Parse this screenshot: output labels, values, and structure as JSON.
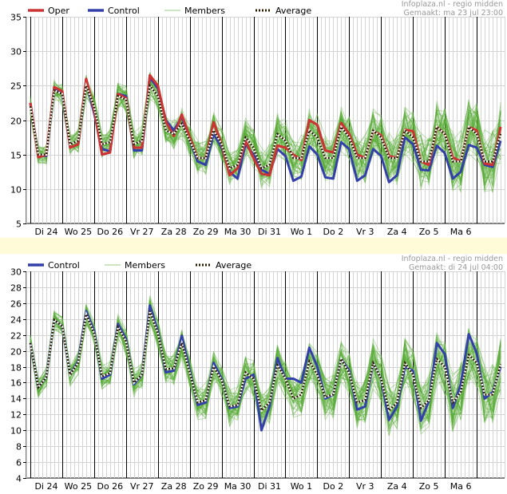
{
  "colors": {
    "oper": "#cc3333",
    "control": "#3340aa",
    "members": "#55aa33",
    "average_dark": "#2a1a00",
    "average_light": "#ffffff",
    "grid": "#d4d4d4",
    "day_line": "#000000",
    "band": "#fffbd8"
  },
  "days": [
    "Di 24",
    "Wo 25",
    "Do 26",
    "Vr 27",
    "Za 28",
    "Zo 29",
    "Ma 30",
    "Di 31",
    "Wo 1",
    "Do 2",
    "Vr 3",
    "Za 4",
    "Zo 5",
    "Ma 6"
  ],
  "chart_data": [
    {
      "type": "line",
      "title": "",
      "credit": [
        "Infoplaza.nl - regio midden",
        "Gemaakt: ma 23 jul 23:00"
      ],
      "legend": [
        "Oper",
        "Control",
        "Members",
        "Average"
      ],
      "legend_position": "top-left",
      "grid": true,
      "ylim": [
        5,
        35
      ],
      "yticks": [
        5,
        10,
        15,
        20,
        25,
        30,
        35
      ],
      "x_step_hours": 6,
      "day_boundaries_at_step": [
        1,
        9,
        17,
        25,
        33,
        41,
        49,
        57,
        65,
        73,
        81,
        89,
        97,
        105,
        113
      ],
      "series": [
        {
          "name": "Oper",
          "values": [
            22.5,
            14.6,
            15.0,
            24.8,
            24.2,
            16.0,
            16.5,
            26.0,
            21.5,
            15.0,
            15.3,
            23.8,
            23.2,
            16.0,
            16.0,
            26.5,
            25.0,
            19.8,
            17.7,
            20.8,
            17.5,
            14.5,
            14.5,
            19.7,
            16.5,
            12.0,
            13.0,
            17.0,
            14.5,
            12.2,
            12.0,
            16.3,
            16.0,
            15.0,
            14.2,
            20.0,
            19.3,
            15.6,
            15.3,
            19.6,
            18.0,
            15.0,
            14.5,
            18.4,
            17.8,
            14.8,
            14.5,
            18.6,
            18.4,
            14.0,
            13.5,
            19.0,
            18.0,
            14.6,
            14.0,
            19.0,
            18.5,
            13.7,
            13.5,
            19.0
          ]
        },
        {
          "name": "Control",
          "values": [
            22.5,
            14.8,
            14.8,
            24.5,
            23.8,
            16.0,
            16.5,
            25.5,
            21.0,
            15.8,
            15.5,
            23.8,
            23.5,
            15.6,
            15.6,
            26.2,
            24.6,
            20.0,
            18.5,
            20.5,
            17.0,
            14.0,
            13.5,
            18.0,
            16.0,
            12.5,
            11.5,
            16.5,
            15.0,
            12.8,
            12.2,
            15.8,
            14.8,
            11.2,
            11.8,
            16.2,
            15.0,
            11.7,
            11.5,
            16.8,
            15.8,
            11.2,
            12.0,
            15.8,
            14.8,
            11.0,
            12.0,
            17.5,
            16.5,
            12.8,
            12.7,
            16.3,
            15.2,
            11.5,
            12.5,
            16.4,
            16.0,
            13.5,
            13.2,
            17.0
          ]
        },
        {
          "name": "Average",
          "values": [
            22.0,
            15.0,
            15.0,
            24.3,
            23.8,
            16.5,
            17.0,
            25.0,
            22.0,
            16.5,
            16.8,
            23.5,
            23.0,
            16.5,
            17.0,
            25.0,
            23.5,
            18.5,
            18.0,
            19.5,
            17.0,
            14.5,
            14.5,
            18.5,
            16.5,
            13.0,
            13.5,
            17.5,
            16.0,
            13.0,
            13.5,
            18.0,
            17.0,
            14.5,
            14.5,
            18.5,
            17.5,
            14.5,
            14.5,
            19.0,
            17.5,
            14.5,
            14.5,
            18.5,
            17.5,
            14.5,
            14.5,
            18.5,
            17.5,
            14.0,
            14.0,
            19.0,
            18.0,
            14.0,
            14.0,
            19.0,
            18.0,
            14.0,
            14.0,
            18.0
          ]
        }
      ],
      "members_count": 50,
      "members_spread": 2.6
    },
    {
      "type": "line",
      "title": "",
      "credit": [
        "Infoplaza.nl - regio midden",
        "Gemaakt: di 24 jul 04:00"
      ],
      "legend": [
        "Control",
        "Members",
        "Average"
      ],
      "legend_position": "top-left",
      "grid": true,
      "ylim": [
        4,
        30
      ],
      "yticks": [
        4,
        6,
        8,
        10,
        12,
        14,
        16,
        18,
        20,
        22,
        24,
        26,
        28,
        30
      ],
      "x_step_hours": 6,
      "day_boundaries_at_step": [
        1,
        9,
        17,
        25,
        33,
        41,
        49,
        57,
        65,
        73,
        81,
        89,
        97,
        105,
        113
      ],
      "series": [
        {
          "name": "Control",
          "values": [
            21.0,
            15.4,
            16.7,
            23.9,
            23.1,
            17.0,
            18.7,
            25.0,
            22.5,
            16.5,
            17.0,
            23.4,
            21.5,
            15.8,
            17.0,
            25.7,
            22.5,
            17.3,
            17.5,
            21.9,
            17.5,
            13.2,
            13.5,
            18.5,
            16.5,
            12.8,
            13.0,
            16.5,
            17.0,
            10.0,
            13.0,
            19.1,
            16.5,
            16.5,
            16.0,
            20.4,
            18.0,
            14.0,
            14.5,
            19.0,
            17.5,
            12.6,
            13.0,
            18.5,
            16.5,
            11.3,
            13.0,
            18.0,
            17.5,
            11.2,
            13.7,
            21.0,
            19.6,
            12.8,
            15.8,
            22.1,
            19.7,
            14.0,
            14.8,
            18.0
          ]
        },
        {
          "name": "Average",
          "values": [
            21.0,
            15.4,
            16.7,
            23.9,
            23.1,
            17.0,
            18.5,
            24.6,
            22.2,
            16.8,
            17.2,
            23.0,
            21.2,
            16.0,
            17.0,
            25.0,
            22.2,
            17.7,
            17.8,
            21.0,
            17.2,
            13.5,
            13.8,
            18.0,
            16.3,
            13.0,
            13.2,
            17.3,
            16.5,
            12.5,
            13.5,
            18.2,
            16.5,
            14.0,
            14.5,
            18.7,
            17.0,
            14.2,
            14.5,
            19.0,
            17.2,
            13.5,
            13.8,
            18.5,
            16.5,
            12.5,
            13.5,
            18.5,
            17.0,
            12.8,
            13.8,
            19.0,
            18.0,
            13.5,
            14.8,
            19.5,
            18.5,
            14.5,
            14.5,
            18.3
          ]
        }
      ],
      "members_count": 50,
      "members_spread": 2.2
    }
  ]
}
